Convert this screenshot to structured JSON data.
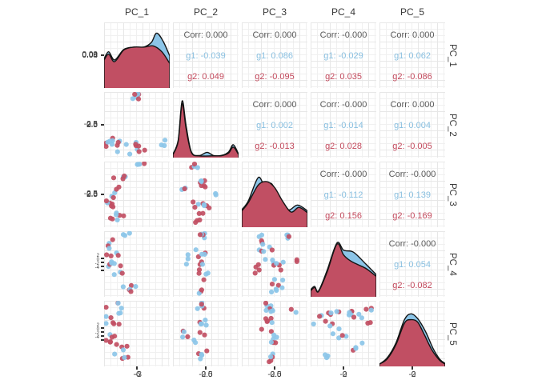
{
  "colors": {
    "g1_fill": "#8CC5E8",
    "g2_fill": "#C14F63",
    "g1_text": "#88BFE0",
    "g2_text": "#C3495C",
    "corr_text": "#5a5a5a",
    "outline": "#141414",
    "axis_text": "#3d3d3d",
    "grid": "#e7e7e7"
  },
  "chart_data": {
    "type": "scatterplot-matrix",
    "title": "",
    "variables": [
      "PC_1",
      "PC_2",
      "PC_3",
      "PC_4",
      "PC_5"
    ],
    "groups": [
      {
        "name": "g1",
        "color": "#8CC5E8"
      },
      {
        "name": "g2",
        "color": "#C14F63"
      }
    ],
    "layout": {
      "diagonal": "density",
      "upper": "correlation-text",
      "lower": "scatter",
      "grid": true,
      "strips": "top-and-right"
    },
    "upper_cells": [
      {
        "row": 1,
        "col": 2,
        "lines": [
          "Corr: 0.000",
          "g1: -0.039",
          "g2: 0.049"
        ],
        "values": {
          "corr": 0.0,
          "g1": -0.039,
          "g2": 0.049
        }
      },
      {
        "row": 1,
        "col": 3,
        "lines": [
          "Corr: 0.000",
          "g1: 0.086",
          "g2: -0.095"
        ],
        "values": {
          "corr": 0.0,
          "g1": 0.086,
          "g2": -0.095
        }
      },
      {
        "row": 1,
        "col": 4,
        "lines": [
          "Corr: -0.000",
          "g1: -0.029",
          "g2: 0.035"
        ],
        "values": {
          "corr": -0.0,
          "g1": -0.029,
          "g2": 0.035
        }
      },
      {
        "row": 1,
        "col": 5,
        "lines": [
          "Corr: 0.000",
          "g1: 0.062",
          "g2: -0.086"
        ],
        "values": {
          "corr": 0.0,
          "g1": 0.062,
          "g2": -0.086
        }
      },
      {
        "row": 2,
        "col": 3,
        "lines": [
          "Corr: 0.000",
          "g1: 0.002",
          "g2: -0.013"
        ],
        "values": {
          "corr": 0.0,
          "g1": 0.002,
          "g2": -0.013
        }
      },
      {
        "row": 2,
        "col": 4,
        "lines": [
          "Corr: -0.000",
          "g1: -0.014",
          "g2: 0.028"
        ],
        "values": {
          "corr": -0.0,
          "g1": -0.014,
          "g2": 0.028
        }
      },
      {
        "row": 2,
        "col": 5,
        "lines": [
          "Corr: 0.000",
          "g1: 0.004",
          "g2: -0.005"
        ],
        "values": {
          "corr": 0.0,
          "g1": 0.004,
          "g2": -0.005
        }
      },
      {
        "row": 3,
        "col": 4,
        "lines": [
          "Corr: -0.000",
          "g1: -0.112",
          "g2: 0.156"
        ],
        "values": {
          "corr": -0.0,
          "g1": -0.112,
          "g2": 0.156
        }
      },
      {
        "row": 3,
        "col": 5,
        "lines": [
          "Corr: -0.000",
          "g1: 0.139",
          "g2: -0.169"
        ],
        "values": {
          "corr": -0.0,
          "g1": 0.139,
          "g2": -0.169
        }
      },
      {
        "row": 4,
        "col": 5,
        "lines": [
          "Corr: -0.000",
          "g1: 0.054",
          "g2: -0.082"
        ],
        "values": {
          "corr": -0.0,
          "g1": 0.054,
          "g2": -0.082
        }
      }
    ],
    "y_axis": {
      "rows": [
        {
          "labels": [
            "0.00",
            "0.04",
            "0.08"
          ],
          "stacked": false
        },
        {
          "labels": [
            "-2.5",
            "0.0",
            "2.5"
          ],
          "stacked": false
        },
        {
          "labels": [
            "-2.5",
            "0.0",
            "2.5"
          ],
          "stacked": false
        },
        {
          "labels": [
            "2",
            "0",
            "-2",
            "-4"
          ],
          "stacked": true
        },
        {
          "labels": [
            "2",
            "0",
            "-2",
            "-4"
          ],
          "stacked": true
        }
      ]
    },
    "x_axis": {
      "cols": [
        {
          "labels": [
            "-6",
            "-3"
          ]
        },
        {
          "labels": [
            "-2.5",
            "0.0"
          ]
        },
        {
          "labels": [
            "-2.5",
            "0.0"
          ]
        },
        {
          "labels": [
            "-2",
            "0"
          ]
        },
        {
          "labels": [
            "-2",
            "0"
          ]
        }
      ]
    },
    "densities": {
      "PC_1": {
        "g1": [
          [
            0,
            0.5
          ],
          [
            0.07,
            0.62
          ],
          [
            0.16,
            0.48
          ],
          [
            0.3,
            0.66
          ],
          [
            0.45,
            0.7
          ],
          [
            0.6,
            0.7
          ],
          [
            0.72,
            0.78
          ],
          [
            0.8,
            0.94
          ],
          [
            0.9,
            0.8
          ],
          [
            1.0,
            0.55
          ]
        ],
        "g2": [
          [
            0,
            0.48
          ],
          [
            0.07,
            0.58
          ],
          [
            0.16,
            0.45
          ],
          [
            0.3,
            0.65
          ],
          [
            0.45,
            0.7
          ],
          [
            0.6,
            0.7
          ],
          [
            0.75,
            0.72
          ],
          [
            0.88,
            0.62
          ],
          [
            1.0,
            0.42
          ]
        ]
      },
      "PC_2": {
        "g1": [
          [
            0,
            0.06
          ],
          [
            0.08,
            0.3
          ],
          [
            0.14,
            0.97
          ],
          [
            0.2,
            0.55
          ],
          [
            0.28,
            0.1
          ],
          [
            0.4,
            0.035
          ],
          [
            0.52,
            0.09
          ],
          [
            0.62,
            0.035
          ],
          [
            0.75,
            0.04
          ],
          [
            0.85,
            0.1
          ],
          [
            0.92,
            0.22
          ],
          [
            1.0,
            0.06
          ]
        ],
        "g2": [
          [
            0,
            0.05
          ],
          [
            0.08,
            0.28
          ],
          [
            0.14,
            0.92
          ],
          [
            0.2,
            0.5
          ],
          [
            0.28,
            0.09
          ],
          [
            0.4,
            0.03
          ],
          [
            0.6,
            0.03
          ],
          [
            0.75,
            0.035
          ],
          [
            0.85,
            0.08
          ],
          [
            0.92,
            0.18
          ],
          [
            1.0,
            0.05
          ]
        ]
      },
      "PC_3": {
        "g1": [
          [
            0,
            0.3
          ],
          [
            0.1,
            0.45
          ],
          [
            0.25,
            0.85
          ],
          [
            0.35,
            0.7
          ],
          [
            0.45,
            0.75
          ],
          [
            0.55,
            0.55
          ],
          [
            0.7,
            0.3
          ],
          [
            0.85,
            0.38
          ],
          [
            1.0,
            0.28
          ]
        ],
        "g2": [
          [
            0,
            0.28
          ],
          [
            0.1,
            0.42
          ],
          [
            0.25,
            0.72
          ],
          [
            0.38,
            0.78
          ],
          [
            0.5,
            0.68
          ],
          [
            0.62,
            0.45
          ],
          [
            0.75,
            0.26
          ],
          [
            0.87,
            0.34
          ],
          [
            1.0,
            0.25
          ]
        ]
      },
      "PC_4": {
        "g1": [
          [
            0,
            0.12
          ],
          [
            0.06,
            0.18
          ],
          [
            0.12,
            0.1
          ],
          [
            0.25,
            0.45
          ],
          [
            0.4,
            0.92
          ],
          [
            0.5,
            0.8
          ],
          [
            0.62,
            0.78
          ],
          [
            0.7,
            0.72
          ],
          [
            0.85,
            0.55
          ],
          [
            1.0,
            0.38
          ]
        ],
        "g2": [
          [
            0,
            0.1
          ],
          [
            0.06,
            0.16
          ],
          [
            0.12,
            0.09
          ],
          [
            0.25,
            0.42
          ],
          [
            0.4,
            0.9
          ],
          [
            0.5,
            0.72
          ],
          [
            0.6,
            0.62
          ],
          [
            0.72,
            0.55
          ],
          [
            0.85,
            0.48
          ],
          [
            1.0,
            0.35
          ]
        ]
      },
      "PC_5": {
        "g1": [
          [
            0,
            0.04
          ],
          [
            0.12,
            0.15
          ],
          [
            0.25,
            0.4
          ],
          [
            0.38,
            0.8
          ],
          [
            0.48,
            0.9
          ],
          [
            0.58,
            0.82
          ],
          [
            0.7,
            0.6
          ],
          [
            0.82,
            0.3
          ],
          [
            0.92,
            0.12
          ],
          [
            1.0,
            0.05
          ]
        ],
        "g2": [
          [
            0,
            0.04
          ],
          [
            0.12,
            0.13
          ],
          [
            0.25,
            0.37
          ],
          [
            0.38,
            0.74
          ],
          [
            0.48,
            0.8
          ],
          [
            0.58,
            0.76
          ],
          [
            0.68,
            0.55
          ],
          [
            0.8,
            0.28
          ],
          [
            0.92,
            0.1
          ],
          [
            1.0,
            0.04
          ]
        ]
      }
    },
    "scatter_clusters": {
      "r2c1": [
        [
          0.17,
          0.8,
          12,
          0.1,
          0.06
        ],
        [
          0.5,
          0.06,
          6,
          0.05,
          0.04
        ],
        [
          0.5,
          0.85,
          8,
          0.07,
          0.05
        ],
        [
          0.88,
          0.8,
          3,
          0.04,
          0.04
        ]
      ],
      "r3c1": [
        [
          0.5,
          0.05,
          4,
          0.05,
          0.03
        ],
        [
          0.14,
          0.45,
          6,
          0.06,
          0.08
        ],
        [
          0.1,
          0.68,
          6,
          0.05,
          0.07
        ],
        [
          0.2,
          0.85,
          7,
          0.08,
          0.06
        ],
        [
          0.3,
          0.25,
          4,
          0.05,
          0.05
        ]
      ],
      "r3c2": [
        [
          0.32,
          0.06,
          4,
          0.04,
          0.03
        ],
        [
          0.45,
          0.35,
          8,
          0.05,
          0.1
        ],
        [
          0.42,
          0.62,
          9,
          0.06,
          0.09
        ],
        [
          0.18,
          0.44,
          3,
          0.04,
          0.04
        ],
        [
          0.4,
          0.88,
          4,
          0.05,
          0.04
        ],
        [
          0.62,
          0.5,
          2,
          0.03,
          0.03
        ]
      ],
      "r4c1": [
        [
          0.3,
          0.05,
          3,
          0.05,
          0.03
        ],
        [
          0.14,
          0.25,
          6,
          0.07,
          0.07
        ],
        [
          0.1,
          0.46,
          7,
          0.06,
          0.07
        ],
        [
          0.26,
          0.62,
          4,
          0.05,
          0.05
        ],
        [
          0.43,
          0.88,
          6,
          0.05,
          0.04
        ]
      ],
      "r4c2": [
        [
          0.45,
          0.08,
          5,
          0.05,
          0.05
        ],
        [
          0.42,
          0.38,
          7,
          0.05,
          0.08
        ],
        [
          0.46,
          0.68,
          6,
          0.05,
          0.08
        ],
        [
          0.2,
          0.45,
          3,
          0.04,
          0.05
        ],
        [
          0.42,
          0.92,
          3,
          0.04,
          0.03
        ]
      ],
      "r4c3": [
        [
          0.3,
          0.12,
          4,
          0.05,
          0.05
        ],
        [
          0.72,
          0.1,
          4,
          0.05,
          0.04
        ],
        [
          0.38,
          0.35,
          8,
          0.06,
          0.08
        ],
        [
          0.52,
          0.48,
          6,
          0.06,
          0.06
        ],
        [
          0.28,
          0.58,
          4,
          0.05,
          0.05
        ],
        [
          0.56,
          0.75,
          4,
          0.05,
          0.05
        ],
        [
          0.5,
          0.9,
          4,
          0.05,
          0.03
        ],
        [
          0.85,
          0.5,
          2,
          0.03,
          0.03
        ]
      ],
      "r5c1": [
        [
          0.25,
          0.07,
          3,
          0.05,
          0.03
        ],
        [
          0.15,
          0.3,
          8,
          0.08,
          0.09
        ],
        [
          0.12,
          0.55,
          8,
          0.07,
          0.08
        ],
        [
          0.3,
          0.7,
          4,
          0.05,
          0.06
        ],
        [
          0.33,
          0.85,
          3,
          0.04,
          0.04
        ]
      ],
      "r5c2": [
        [
          0.4,
          0.07,
          5,
          0.05,
          0.04
        ],
        [
          0.45,
          0.38,
          6,
          0.05,
          0.08
        ],
        [
          0.3,
          0.55,
          4,
          0.05,
          0.06
        ],
        [
          0.42,
          0.8,
          5,
          0.05,
          0.06
        ],
        [
          0.16,
          0.45,
          3,
          0.04,
          0.05
        ]
      ],
      "r5c3": [
        [
          0.42,
          0.08,
          6,
          0.05,
          0.05
        ],
        [
          0.4,
          0.33,
          8,
          0.05,
          0.08
        ],
        [
          0.45,
          0.6,
          7,
          0.05,
          0.08
        ],
        [
          0.42,
          0.88,
          5,
          0.05,
          0.04
        ],
        [
          0.78,
          0.18,
          2,
          0.03,
          0.03
        ]
      ],
      "r5c4": [
        [
          0.15,
          0.35,
          5,
          0.07,
          0.08
        ],
        [
          0.35,
          0.22,
          6,
          0.07,
          0.06
        ],
        [
          0.6,
          0.18,
          6,
          0.07,
          0.06
        ],
        [
          0.82,
          0.32,
          4,
          0.05,
          0.06
        ],
        [
          0.45,
          0.52,
          5,
          0.06,
          0.06
        ],
        [
          0.7,
          0.72,
          4,
          0.05,
          0.05
        ],
        [
          0.3,
          0.85,
          3,
          0.04,
          0.04
        ],
        [
          0.9,
          0.14,
          3,
          0.04,
          0.03
        ]
      ]
    }
  }
}
